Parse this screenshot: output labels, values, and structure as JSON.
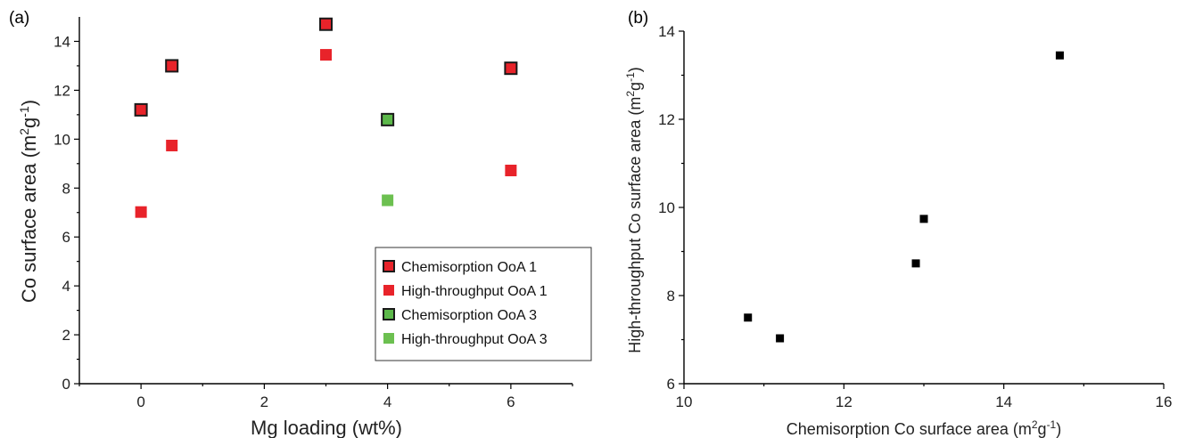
{
  "chart_data": [
    {
      "type": "scatter",
      "panel_label": "(a)",
      "xlabel": "Mg loading (wt%)",
      "ylabel_main": "Co surface area (m",
      "ylabel_sup1": "2",
      "ylabel_mid": "g",
      "ylabel_sup2": "-1",
      "ylabel_end": ")",
      "xlim": [
        -1,
        7
      ],
      "ylim": [
        0,
        15
      ],
      "xticks": [
        0,
        2,
        4,
        6
      ],
      "yticks": [
        0,
        2,
        4,
        6,
        8,
        10,
        12,
        14
      ],
      "legend_position": "bottom-right",
      "series": [
        {
          "name": "Chemisorption OoA 1",
          "color": "#e8232a",
          "outline": true,
          "x": [
            0,
            0.5,
            3,
            6
          ],
          "y": [
            11.2,
            13.0,
            14.7,
            12.9
          ]
        },
        {
          "name": "High-throughput OoA 1",
          "color": "#e8232a",
          "outline": false,
          "x": [
            0,
            0.5,
            3,
            6
          ],
          "y": [
            7.02,
            9.74,
            13.45,
            8.72
          ]
        },
        {
          "name": "Chemisorption OoA 3",
          "color": "#5cb84a",
          "outline": true,
          "x": [
            4
          ],
          "y": [
            10.8
          ]
        },
        {
          "name": "High-throughput OoA 3",
          "color": "#6cc050",
          "outline": false,
          "x": [
            4
          ],
          "y": [
            7.5
          ]
        }
      ]
    },
    {
      "type": "scatter",
      "panel_label": "(b)",
      "xlabel_main": "Chemisorption Co surface area (m",
      "xlabel_sup1": "2",
      "xlabel_mid": "g",
      "xlabel_sup2": "-1",
      "xlabel_end": ")",
      "ylabel_main": "High-throughput Co surface area (m",
      "ylabel_sup1": "2",
      "ylabel_mid": "g",
      "ylabel_sup2": "-1",
      "ylabel_end": ")",
      "xlim": [
        10,
        16
      ],
      "ylim": [
        6,
        14
      ],
      "xticks": [
        10,
        12,
        14,
        16
      ],
      "yticks": [
        6,
        8,
        10,
        12,
        14
      ],
      "series": [
        {
          "color": "#000000",
          "x": [
            10.8,
            11.2,
            12.9,
            13.0,
            14.7
          ],
          "y": [
            7.5,
            7.03,
            8.73,
            9.74,
            13.45
          ]
        }
      ]
    }
  ]
}
